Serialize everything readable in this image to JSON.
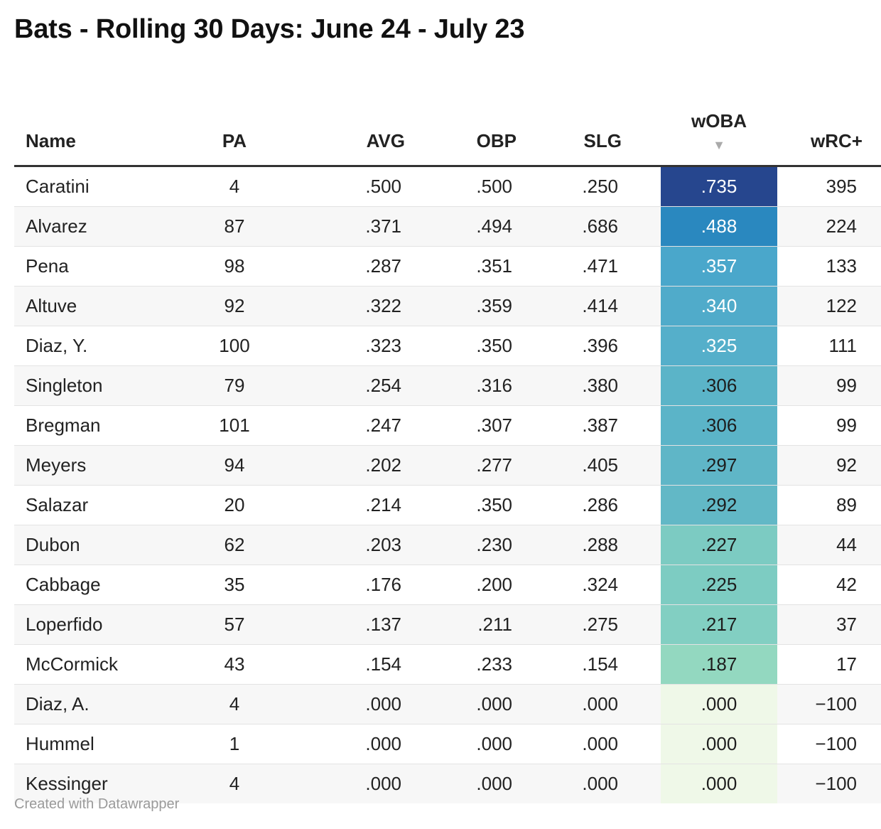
{
  "title": "Bats - Rolling 30 Days: June 24 - July 23",
  "footer": "Created with Datawrapper",
  "chart_data": {
    "type": "table",
    "title": "Bats - Rolling 30 Days: June 24 - July 23",
    "sorted_by": "wOBA",
    "sort_indicator": "▼",
    "columns": [
      "Name",
      "PA",
      "AVG",
      "OBP",
      "SLG",
      "wOBA",
      "wRC+"
    ],
    "rows": [
      {
        "name": "Caratini",
        "pa": "4",
        "avg": ".500",
        "obp": ".500",
        "slg": ".250",
        "woba": ".735",
        "wrc": "395",
        "woba_color": "#26468e",
        "woba_text": "#ffffff"
      },
      {
        "name": "Alvarez",
        "pa": "87",
        "avg": ".371",
        "obp": ".494",
        "slg": ".686",
        "woba": ".488",
        "wrc": "224",
        "woba_color": "#2a88bf",
        "woba_text": "#ffffff"
      },
      {
        "name": "Pena",
        "pa": "98",
        "avg": ".287",
        "obp": ".351",
        "slg": ".471",
        "woba": ".357",
        "wrc": "133",
        "woba_color": "#4aa7cb",
        "woba_text": "#ffffff"
      },
      {
        "name": "Altuve",
        "pa": "92",
        "avg": ".322",
        "obp": ".359",
        "slg": ".414",
        "woba": ".340",
        "wrc": "122",
        "woba_color": "#50abca",
        "woba_text": "#ffffff"
      },
      {
        "name": "Diaz, Y.",
        "pa": "100",
        "avg": ".323",
        "obp": ".350",
        "slg": ".396",
        "woba": ".325",
        "wrc": "111",
        "woba_color": "#55afca",
        "woba_text": "#ffffff"
      },
      {
        "name": "Singleton",
        "pa": "79",
        "avg": ".254",
        "obp": ".316",
        "slg": ".380",
        "woba": ".306",
        "wrc": "99",
        "woba_color": "#5bb4c8",
        "woba_text": "#1d1d1d"
      },
      {
        "name": "Bregman",
        "pa": "101",
        "avg": ".247",
        "obp": ".307",
        "slg": ".387",
        "woba": ".306",
        "wrc": "99",
        "woba_color": "#5bb4c8",
        "woba_text": "#1d1d1d"
      },
      {
        "name": "Meyers",
        "pa": "94",
        "avg": ".202",
        "obp": ".277",
        "slg": ".405",
        "woba": ".297",
        "wrc": "92",
        "woba_color": "#5fb6c7",
        "woba_text": "#1d1d1d"
      },
      {
        "name": "Salazar",
        "pa": "20",
        "avg": ".214",
        "obp": ".350",
        "slg": ".286",
        "woba": ".292",
        "wrc": "89",
        "woba_color": "#62b8c6",
        "woba_text": "#1d1d1d"
      },
      {
        "name": "Dubon",
        "pa": "62",
        "avg": ".203",
        "obp": ".230",
        "slg": ".288",
        "woba": ".227",
        "wrc": "44",
        "woba_color": "#7ccbc2",
        "woba_text": "#1d1d1d"
      },
      {
        "name": "Cabbage",
        "pa": "35",
        "avg": ".176",
        "obp": ".200",
        "slg": ".324",
        "woba": ".225",
        "wrc": "42",
        "woba_color": "#7dccc2",
        "woba_text": "#1d1d1d"
      },
      {
        "name": "Loperfido",
        "pa": "57",
        "avg": ".137",
        "obp": ".211",
        "slg": ".275",
        "woba": ".217",
        "wrc": "37",
        "woba_color": "#82cfc2",
        "woba_text": "#1d1d1d"
      },
      {
        "name": "McCormick",
        "pa": "43",
        "avg": ".154",
        "obp": ".233",
        "slg": ".154",
        "woba": ".187",
        "wrc": "17",
        "woba_color": "#93d8c0",
        "woba_text": "#1d1d1d"
      },
      {
        "name": "Diaz, A.",
        "pa": "4",
        "avg": ".000",
        "obp": ".000",
        "slg": ".000",
        "woba": ".000",
        "wrc": "−100",
        "woba_color": "#eff8e8",
        "woba_text": "#1d1d1d"
      },
      {
        "name": "Hummel",
        "pa": "1",
        "avg": ".000",
        "obp": ".000",
        "slg": ".000",
        "woba": ".000",
        "wrc": "−100",
        "woba_color": "#eff8e8",
        "woba_text": "#1d1d1d"
      },
      {
        "name": "Kessinger",
        "pa": "4",
        "avg": ".000",
        "obp": ".000",
        "slg": ".000",
        "woba": ".000",
        "wrc": "−100",
        "woba_color": "#eff8e8",
        "woba_text": "#1d1d1d"
      }
    ]
  }
}
